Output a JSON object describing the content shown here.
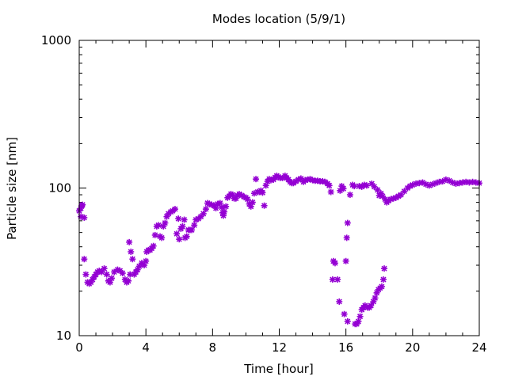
{
  "chart_data": {
    "type": "scatter",
    "title": "Modes location (5/9/1)",
    "xlabel": "Time [hour]",
    "ylabel": "Particle size [nm]",
    "xlim": [
      0,
      24
    ],
    "ylim": [
      10,
      1000
    ],
    "yscale": "log",
    "x_ticks": [
      0,
      4,
      8,
      12,
      16,
      20,
      24
    ],
    "x_tick_labels": [
      "0",
      "4",
      "8",
      "12",
      "16",
      "20",
      "24"
    ],
    "y_ticks": [
      10,
      100,
      1000
    ],
    "y_tick_labels": [
      "10",
      "100",
      "1000"
    ],
    "grid": false,
    "legend": "none",
    "marker_color": "#9400d3",
    "marker": "asterisk",
    "series": [
      {
        "values": [
          [
            0.0,
            70
          ],
          [
            0.1,
            73
          ],
          [
            0.15,
            76
          ],
          [
            0.2,
            77
          ],
          [
            0.1,
            64
          ],
          [
            0.3,
            63
          ],
          [
            0.3,
            33
          ],
          [
            0.4,
            26
          ],
          [
            0.5,
            23
          ],
          [
            0.6,
            22.5
          ],
          [
            0.7,
            23
          ],
          [
            0.8,
            24
          ],
          [
            0.9,
            25
          ],
          [
            1.0,
            26
          ],
          [
            1.1,
            27
          ],
          [
            1.2,
            27.5
          ],
          [
            1.35,
            27
          ],
          [
            1.5,
            28.5
          ],
          [
            1.65,
            26
          ],
          [
            1.75,
            23.5
          ],
          [
            1.85,
            23
          ],
          [
            1.95,
            24.5
          ],
          [
            2.1,
            27
          ],
          [
            2.3,
            28
          ],
          [
            2.45,
            27.5
          ],
          [
            2.6,
            26.5
          ],
          [
            2.75,
            24
          ],
          [
            2.85,
            23
          ],
          [
            2.95,
            23.5
          ],
          [
            3.05,
            26
          ],
          [
            3.0,
            43
          ],
          [
            3.1,
            37
          ],
          [
            3.2,
            33
          ],
          [
            3.3,
            26
          ],
          [
            3.4,
            27
          ],
          [
            3.5,
            28
          ],
          [
            3.6,
            29.5
          ],
          [
            3.75,
            31
          ],
          [
            3.9,
            30
          ],
          [
            4.0,
            32
          ],
          [
            4.05,
            37
          ],
          [
            4.15,
            38
          ],
          [
            4.25,
            38
          ],
          [
            4.35,
            39
          ],
          [
            4.45,
            40.5
          ],
          [
            4.55,
            48
          ],
          [
            4.65,
            55
          ],
          [
            4.75,
            56
          ],
          [
            4.85,
            47
          ],
          [
            4.95,
            46
          ],
          [
            5.05,
            55
          ],
          [
            5.15,
            58
          ],
          [
            5.25,
            64
          ],
          [
            5.35,
            67
          ],
          [
            5.5,
            69
          ],
          [
            5.6,
            70
          ],
          [
            5.75,
            72
          ],
          [
            5.85,
            49
          ],
          [
            5.95,
            62
          ],
          [
            6.0,
            45
          ],
          [
            6.1,
            53
          ],
          [
            6.2,
            55
          ],
          [
            6.3,
            61
          ],
          [
            6.35,
            46
          ],
          [
            6.45,
            47
          ],
          [
            6.55,
            52
          ],
          [
            6.65,
            52
          ],
          [
            6.75,
            52
          ],
          [
            6.9,
            56
          ],
          [
            7.0,
            61
          ],
          [
            7.15,
            62
          ],
          [
            7.3,
            64
          ],
          [
            7.45,
            67
          ],
          [
            7.6,
            72
          ],
          [
            7.7,
            79
          ],
          [
            7.8,
            78
          ],
          [
            7.95,
            77
          ],
          [
            8.1,
            76
          ],
          [
            8.2,
            73
          ],
          [
            8.3,
            78
          ],
          [
            8.45,
            79
          ],
          [
            8.55,
            74
          ],
          [
            8.6,
            68
          ],
          [
            8.65,
            65
          ],
          [
            8.7,
            69
          ],
          [
            8.8,
            75
          ],
          [
            8.9,
            86
          ],
          [
            9.0,
            88
          ],
          [
            9.1,
            91
          ],
          [
            9.2,
            90
          ],
          [
            9.3,
            85
          ],
          [
            9.4,
            85
          ],
          [
            9.5,
            89
          ],
          [
            9.6,
            91
          ],
          [
            9.75,
            89
          ],
          [
            9.9,
            87
          ],
          [
            10.0,
            86
          ],
          [
            10.1,
            84
          ],
          [
            10.2,
            78
          ],
          [
            10.3,
            75
          ],
          [
            10.4,
            80
          ],
          [
            10.5,
            92
          ],
          [
            10.6,
            115
          ],
          [
            10.7,
            94
          ],
          [
            10.8,
            94
          ],
          [
            10.9,
            96
          ],
          [
            11.0,
            93
          ],
          [
            11.1,
            76
          ],
          [
            11.2,
            104
          ],
          [
            11.3,
            111
          ],
          [
            11.4,
            115
          ],
          [
            11.5,
            113
          ],
          [
            11.65,
            114
          ],
          [
            11.75,
            118
          ],
          [
            11.85,
            121
          ],
          [
            11.95,
            119
          ],
          [
            12.05,
            117
          ],
          [
            12.2,
            117
          ],
          [
            12.35,
            121
          ],
          [
            12.45,
            117
          ],
          [
            12.55,
            114
          ],
          [
            12.65,
            110
          ],
          [
            12.75,
            108
          ],
          [
            12.85,
            108
          ],
          [
            13.0,
            111
          ],
          [
            13.15,
            114
          ],
          [
            13.3,
            116
          ],
          [
            13.45,
            110
          ],
          [
            13.55,
            113
          ],
          [
            13.7,
            114
          ],
          [
            13.85,
            115
          ],
          [
            14.0,
            113
          ],
          [
            14.15,
            112
          ],
          [
            14.3,
            112
          ],
          [
            14.45,
            111
          ],
          [
            14.6,
            111
          ],
          [
            14.75,
            110
          ],
          [
            14.9,
            107
          ],
          [
            15.0,
            104
          ],
          [
            15.1,
            94
          ],
          [
            15.2,
            24
          ],
          [
            15.25,
            32
          ],
          [
            15.35,
            31
          ],
          [
            15.5,
            24
          ],
          [
            15.6,
            17
          ],
          [
            15.65,
            96
          ],
          [
            15.75,
            103
          ],
          [
            15.85,
            99
          ],
          [
            15.9,
            14
          ],
          [
            16.0,
            32
          ],
          [
            16.05,
            46
          ],
          [
            16.1,
            58
          ],
          [
            16.1,
            12.5
          ],
          [
            16.25,
            90
          ],
          [
            16.4,
            105
          ],
          [
            16.5,
            103
          ],
          [
            16.55,
            12
          ],
          [
            16.65,
            12
          ],
          [
            16.75,
            12.5
          ],
          [
            16.8,
            103
          ],
          [
            16.85,
            13.5
          ],
          [
            16.95,
            102
          ],
          [
            16.95,
            15
          ],
          [
            17.05,
            15.5
          ],
          [
            17.1,
            105
          ],
          [
            17.15,
            16
          ],
          [
            17.25,
            104
          ],
          [
            17.3,
            15.5
          ],
          [
            17.4,
            15.5
          ],
          [
            17.5,
            16
          ],
          [
            17.55,
            107
          ],
          [
            17.65,
            17
          ],
          [
            17.7,
            102
          ],
          [
            17.75,
            18
          ],
          [
            17.85,
            19.5
          ],
          [
            17.9,
            97
          ],
          [
            17.95,
            20.5
          ],
          [
            18.0,
            89
          ],
          [
            18.05,
            21
          ],
          [
            18.1,
            92
          ],
          [
            18.15,
            21.5
          ],
          [
            18.2,
            88
          ],
          [
            18.25,
            24
          ],
          [
            18.3,
            28.5
          ],
          [
            18.35,
            84
          ],
          [
            18.45,
            80
          ],
          [
            18.55,
            82
          ],
          [
            18.7,
            84
          ],
          [
            18.85,
            85
          ],
          [
            19.0,
            86
          ],
          [
            19.15,
            88
          ],
          [
            19.3,
            90
          ],
          [
            19.5,
            95
          ],
          [
            19.7,
            100
          ],
          [
            19.85,
            103
          ],
          [
            20.0,
            105
          ],
          [
            20.2,
            107
          ],
          [
            20.4,
            108
          ],
          [
            20.6,
            109
          ],
          [
            20.8,
            106
          ],
          [
            21.0,
            104
          ],
          [
            21.2,
            106
          ],
          [
            21.4,
            108
          ],
          [
            21.6,
            110
          ],
          [
            21.8,
            111
          ],
          [
            22.0,
            114
          ],
          [
            22.2,
            112
          ],
          [
            22.4,
            109
          ],
          [
            22.6,
            107
          ],
          [
            22.8,
            108
          ],
          [
            23.0,
            109
          ],
          [
            23.2,
            110
          ],
          [
            23.4,
            109
          ],
          [
            23.6,
            110
          ],
          [
            23.8,
            109
          ],
          [
            24.0,
            108
          ]
        ]
      }
    ]
  }
}
